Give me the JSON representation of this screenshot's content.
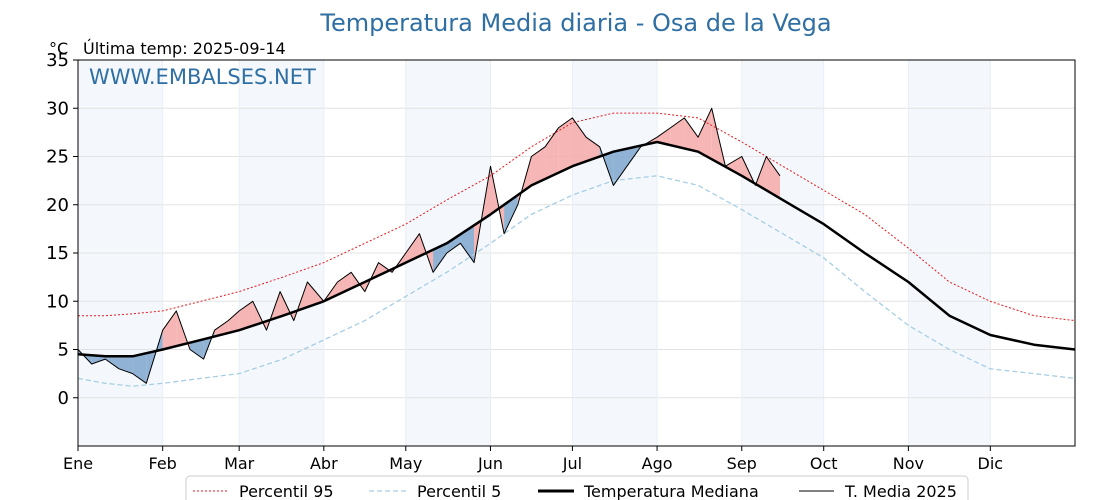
{
  "chart_data": {
    "type": "line",
    "title": "Temperatura Media diaria - Osa de la Vega",
    "unit_label": "°C",
    "subtitle": "Última temp: 2025-09-14",
    "watermark": "WWW.EMBALSES.NET",
    "ylim": [
      -5,
      35
    ],
    "yticks": [
      0,
      5,
      10,
      15,
      20,
      25,
      30,
      35
    ],
    "xlim": [
      0,
      365
    ],
    "month_starts": [
      0,
      31,
      59,
      90,
      120,
      151,
      181,
      212,
      243,
      273,
      304,
      334
    ],
    "month_labels": [
      "Ene",
      "Feb",
      "Mar",
      "Abr",
      "May",
      "Jun",
      "Jul",
      "Ago",
      "Sep",
      "Oct",
      "Nov",
      "Dic"
    ],
    "shaded_months": [
      "Ene",
      "Mar",
      "May",
      "Jul",
      "Sep",
      "Nov"
    ],
    "grid": true,
    "legend_position": "bottom",
    "series": [
      {
        "name": "Percentil 95",
        "style": "dotted",
        "color": "#e41a1c",
        "x": [
          0,
          10,
          20,
          31,
          45,
          59,
          75,
          90,
          105,
          120,
          135,
          151,
          166,
          181,
          196,
          212,
          227,
          243,
          258,
          273,
          288,
          304,
          319,
          334,
          350,
          365
        ],
        "y": [
          8.5,
          8.5,
          8.7,
          9,
          10,
          11,
          12.5,
          14,
          16,
          18,
          20.5,
          23,
          26,
          28.5,
          29.5,
          29.5,
          29,
          26.5,
          24,
          21.5,
          19,
          15.5,
          12,
          10,
          8.5,
          8
        ]
      },
      {
        "name": "Percentil 5",
        "style": "dashed",
        "color": "#a6cee3",
        "x": [
          0,
          10,
          20,
          31,
          45,
          59,
          75,
          90,
          105,
          120,
          135,
          151,
          166,
          181,
          196,
          212,
          227,
          243,
          258,
          273,
          288,
          304,
          319,
          334,
          350,
          365
        ],
        "y": [
          2,
          1.5,
          1.2,
          1.5,
          2,
          2.5,
          4,
          6,
          8,
          10.5,
          13,
          16,
          19,
          21,
          22.5,
          23,
          22,
          19.5,
          17,
          14.5,
          11,
          7.5,
          5,
          3,
          2.5,
          2
        ]
      },
      {
        "name": "Temperatura Mediana",
        "style": "solid-thick",
        "color": "#000000",
        "x": [
          0,
          10,
          20,
          31,
          45,
          59,
          75,
          90,
          105,
          120,
          135,
          151,
          166,
          181,
          196,
          212,
          227,
          243,
          258,
          273,
          288,
          304,
          319,
          334,
          350,
          365
        ],
        "y": [
          4.5,
          4.3,
          4.3,
          5,
          6,
          7,
          8.5,
          10,
          12,
          14,
          16,
          19,
          22,
          24,
          25.5,
          26.5,
          25.5,
          23,
          20.5,
          18,
          15,
          12,
          8.5,
          6.5,
          5.5,
          5
        ]
      },
      {
        "name": "T. Media 2025",
        "style": "solid",
        "color": "#000000",
        "x": [
          0,
          5,
          10,
          15,
          20,
          25,
          31,
          36,
          41,
          46,
          50,
          55,
          59,
          64,
          69,
          74,
          79,
          84,
          90,
          95,
          100,
          105,
          110,
          115,
          120,
          125,
          130,
          135,
          140,
          145,
          151,
          156,
          161,
          166,
          171,
          176,
          181,
          186,
          191,
          196,
          201,
          206,
          212,
          217,
          222,
          227,
          232,
          237,
          243,
          248,
          252,
          257
        ],
        "y": [
          5,
          3.5,
          4,
          3,
          2.5,
          1.5,
          7,
          9,
          5,
          4,
          7,
          8,
          9,
          10,
          7,
          11,
          8,
          12,
          10,
          12,
          13,
          11,
          14,
          13,
          15,
          17,
          13,
          15,
          16,
          14,
          24,
          17,
          20,
          25,
          26,
          28,
          29,
          27,
          26,
          22,
          24,
          26,
          27,
          28,
          29,
          27,
          30,
          24,
          25,
          22,
          25,
          23
        ]
      }
    ]
  }
}
